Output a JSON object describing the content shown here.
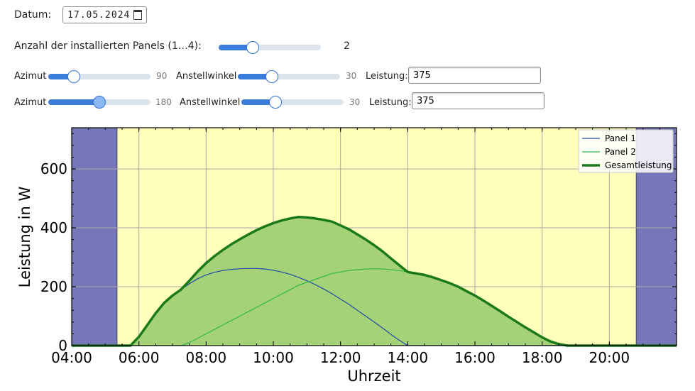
{
  "controls": {
    "date_label": "Datum:",
    "date_value": "17.05.2024",
    "panels_label": "Anzahl der installierten Panels (1…4):",
    "panels_value": "2",
    "panels_fraction": 0.333,
    "panels": [
      {
        "azimut_label": "Azimut",
        "azimut_value": "90",
        "azimut_fraction": 0.25,
        "angle_label": "Anstellwinkel",
        "angle_value": "30",
        "angle_fraction": 0.333,
        "power_label": "Leistung:",
        "power_value": "375"
      },
      {
        "azimut_label": "Azimut",
        "azimut_value": "180",
        "azimut_fraction": 0.5,
        "angle_label": "Anstellwinkel",
        "angle_value": "30",
        "angle_fraction": 0.333,
        "power_label": "Leistung:",
        "power_value": "375"
      }
    ]
  },
  "colors": {
    "night": "#7676bb",
    "day": "#ffffbb",
    "fill": "#a6d277",
    "panel1": "#1f4aa8",
    "panel2": "#2db84a",
    "total": "#1a7a1a",
    "grid": "#aaaaaa"
  },
  "chart_data": {
    "type": "area",
    "xlabel": "Uhrzeit",
    "ylabel": "Leistung in W",
    "xlim": [
      4,
      22
    ],
    "ylim": [
      0,
      740
    ],
    "xticks": [
      4,
      6,
      8,
      10,
      12,
      14,
      16,
      18,
      20
    ],
    "xtick_labels": [
      "04:00",
      "06:00",
      "08:00",
      "10:00",
      "12:00",
      "14:00",
      "16:00",
      "18:00",
      "20:00"
    ],
    "yticks": [
      0,
      200,
      400,
      600
    ],
    "ytick_labels": [
      "0",
      "200",
      "400",
      "600"
    ],
    "grid": true,
    "legend_position": "top-right",
    "sunrise": 5.35,
    "sunset": 20.8,
    "x": [
      5.5,
      5.75,
      6.0,
      6.25,
      6.5,
      6.75,
      7.0,
      7.25,
      7.5,
      7.75,
      8.0,
      8.25,
      8.5,
      8.75,
      9.0,
      9.25,
      9.5,
      9.75,
      10.0,
      10.25,
      10.5,
      10.75,
      11.0,
      11.25,
      11.5,
      11.75,
      12.0,
      12.25,
      12.5,
      12.75,
      13.0,
      13.25,
      13.5,
      13.75,
      14.0,
      14.25,
      14.5,
      14.75,
      15.0,
      15.25,
      15.5,
      15.75,
      16.0,
      16.25,
      16.5,
      16.75,
      17.0,
      17.25,
      17.5,
      17.75,
      18.0,
      18.25,
      18.5,
      18.75,
      19.0
    ],
    "series": [
      {
        "name": "Panel 1",
        "values": [
          0,
          0,
          30,
          70,
          110,
          145,
          170,
          190,
          210,
          227,
          240,
          249,
          255,
          259,
          261,
          262,
          262,
          260,
          256,
          250,
          242,
          232,
          220,
          207,
          192,
          176,
          158,
          140,
          120,
          100,
          80,
          60,
          38,
          18,
          0,
          0,
          0,
          0,
          0,
          0,
          0,
          0,
          0,
          0,
          0,
          0,
          0,
          0,
          0,
          0,
          0,
          0,
          0,
          0,
          0
        ]
      },
      {
        "name": "Panel 2",
        "values": [
          0,
          0,
          0,
          0,
          0,
          0,
          0,
          0,
          10,
          25,
          40,
          55,
          70,
          85,
          100,
          115,
          130,
          145,
          160,
          175,
          190,
          205,
          215,
          225,
          235,
          245,
          250,
          255,
          258,
          260,
          261,
          260,
          258,
          255,
          250,
          245,
          240,
          232,
          222,
          212,
          200,
          185,
          170,
          153,
          135,
          117,
          98,
          80,
          62,
          45,
          28,
          14,
          5,
          0,
          0
        ]
      },
      {
        "name": "Gesamtleistung",
        "values": [
          0,
          0,
          30,
          70,
          110,
          145,
          170,
          190,
          220,
          252,
          280,
          304,
          325,
          344,
          361,
          377,
          392,
          405,
          416,
          425,
          432,
          437,
          435,
          432,
          427,
          421,
          408,
          395,
          378,
          360,
          341,
          320,
          296,
          273,
          250,
          245,
          240,
          232,
          222,
          212,
          200,
          185,
          170,
          153,
          135,
          117,
          98,
          80,
          62,
          45,
          28,
          14,
          5,
          0,
          0
        ]
      }
    ]
  }
}
